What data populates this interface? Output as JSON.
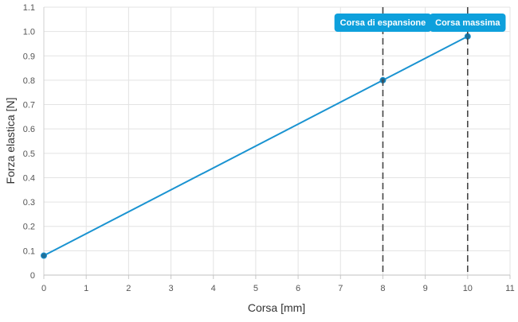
{
  "chart_data": {
    "type": "line",
    "xlabel": "Corsa [mm]",
    "ylabel": "Forza elastica [N]",
    "xlim": [
      0,
      11
    ],
    "ylim": [
      0,
      1.1
    ],
    "x_ticks": [
      0,
      1,
      2,
      3,
      4,
      5,
      6,
      7,
      8,
      9,
      10,
      11
    ],
    "y_ticks": [
      0,
      0.1,
      0.2,
      0.3,
      0.4,
      0.5,
      0.6,
      0.7,
      0.8,
      0.9,
      1.0,
      1.1
    ],
    "y_tick_labels": [
      "0",
      "0.1",
      "0.2",
      "0.3",
      "0.4",
      "0.5",
      "0.6",
      "0.7",
      "0.8",
      "0.9",
      "1.0",
      "1.1"
    ],
    "grid": true,
    "series": [
      {
        "color": "#1a93d1",
        "points": [
          {
            "x": 0,
            "y": 0.08
          },
          {
            "x": 8,
            "y": 0.8
          },
          {
            "x": 10,
            "y": 0.98
          }
        ]
      }
    ],
    "annotations": [
      {
        "x": 8,
        "label": "Corsa di espansione",
        "style": "dashed-vertical-line"
      },
      {
        "x": 10,
        "label": "Corsa massima",
        "style": "dashed-vertical-line"
      }
    ],
    "colors": {
      "line": "#1a93d1",
      "marker": "#1f6f99",
      "annotation_box": "#0ea0dc",
      "annotation_line": "#444444",
      "grid": "#e3e3e3"
    }
  }
}
